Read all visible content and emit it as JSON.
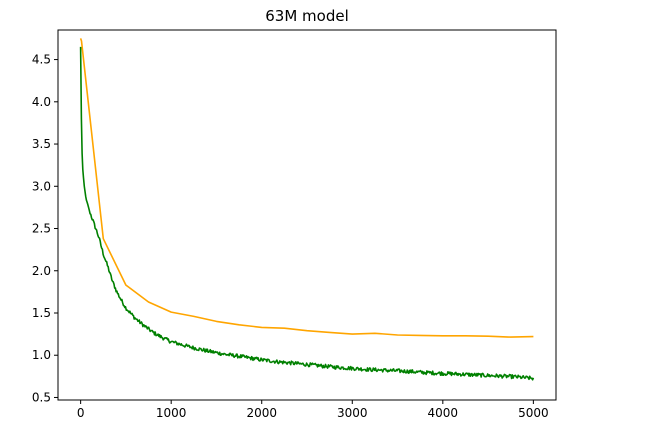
{
  "chart_data": {
    "type": "line",
    "title": "63M model",
    "xlabel": "",
    "ylabel": "",
    "xlim": [
      -250,
      5250
    ],
    "ylim": [
      0.47,
      4.85
    ],
    "x_ticks": [
      0,
      1000,
      2000,
      3000,
      4000,
      5000
    ],
    "y_ticks": [
      0.5,
      1.0,
      1.5,
      2.0,
      2.5,
      3.0,
      3.5,
      4.0,
      4.5
    ],
    "x_tick_labels": [
      "0",
      "1000",
      "2000",
      "3000",
      "4000",
      "5000"
    ],
    "y_tick_labels": [
      "0.5",
      "1.0",
      "1.5",
      "2.0",
      "2.5",
      "3.0",
      "3.5",
      "4.0",
      "4.5"
    ],
    "grid": false,
    "legend": null,
    "series": [
      {
        "color": "#ffa500",
        "x": [
          0,
          10,
          250,
          500,
          750,
          1000,
          1250,
          1500,
          1750,
          2000,
          2250,
          2500,
          2750,
          3000,
          3250,
          3500,
          3750,
          4000,
          4250,
          4500,
          4750,
          5000
        ],
        "y": [
          4.75,
          4.72,
          2.38,
          1.83,
          1.63,
          1.51,
          1.46,
          1.4,
          1.36,
          1.33,
          1.32,
          1.29,
          1.27,
          1.25,
          1.26,
          1.24,
          1.235,
          1.23,
          1.23,
          1.225,
          1.215,
          1.22
        ]
      },
      {
        "color": "#008000",
        "x": [
          0,
          5,
          10,
          20,
          40,
          60,
          80,
          100,
          150,
          200,
          250,
          300,
          350,
          400,
          450,
          500,
          600,
          700,
          800,
          900,
          1000,
          1200,
          1400,
          1600,
          1800,
          2000,
          2200,
          2400,
          2600,
          2800,
          3000,
          3200,
          3400,
          3600,
          3800,
          4000,
          4200,
          4400,
          4600,
          4800,
          5000
        ],
        "y": [
          4.65,
          4.1,
          3.6,
          3.25,
          3.0,
          2.85,
          2.78,
          2.7,
          2.55,
          2.4,
          2.2,
          2.05,
          1.88,
          1.75,
          1.65,
          1.56,
          1.44,
          1.35,
          1.27,
          1.21,
          1.16,
          1.1,
          1.05,
          1.01,
          0.98,
          0.945,
          0.92,
          0.9,
          0.88,
          0.86,
          0.845,
          0.83,
          0.82,
          0.81,
          0.795,
          0.785,
          0.775,
          0.765,
          0.755,
          0.745,
          0.725
        ]
      }
    ]
  }
}
